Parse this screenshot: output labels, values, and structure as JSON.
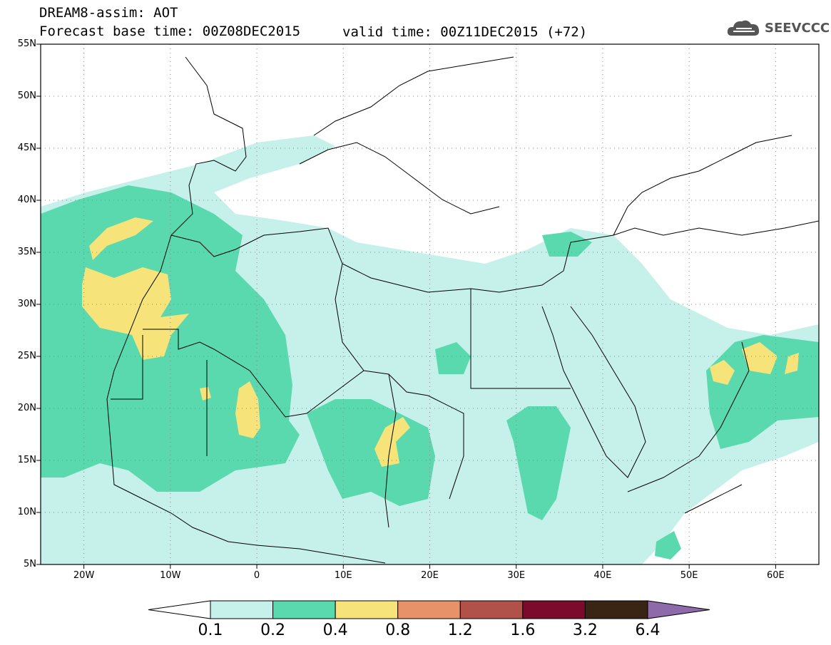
{
  "header": {
    "title_line1": "DREAM8-assim: AOT",
    "title_line2a": "Forecast base time: 00Z08DEC2015",
    "title_line2b": "valid time: 00Z11DEC2015 (+72)",
    "logo_text": "SEEVCCC",
    "logo_icon": "cloud-icon"
  },
  "map": {
    "lon_range": [
      -25,
      65
    ],
    "lat_range": [
      5,
      55
    ],
    "lat_labels": [
      "55N",
      "50N",
      "45N",
      "40N",
      "35N",
      "30N",
      "25N",
      "20N",
      "15N",
      "10N",
      "5N"
    ],
    "lon_labels": [
      "20W",
      "10W",
      "0",
      "10E",
      "20E",
      "30E",
      "40E",
      "50E",
      "60E"
    ],
    "grid": "dotted"
  },
  "colorbar": {
    "labels": [
      "0.1",
      "0.2",
      "0.4",
      "0.8",
      "1.2",
      "1.6",
      "3.2",
      "6.4"
    ],
    "colors": [
      "#ffffff",
      "#c6f0ea",
      "#5ad9ae",
      "#f6e47a",
      "#e8926a",
      "#b0514a",
      "#7c0a2c",
      "#3a2414",
      "#8f6aaa"
    ]
  },
  "legend_colors": {
    "c1": "#c6f0ea",
    "c2": "#5ad9ae",
    "c3": "#f6e47a"
  }
}
